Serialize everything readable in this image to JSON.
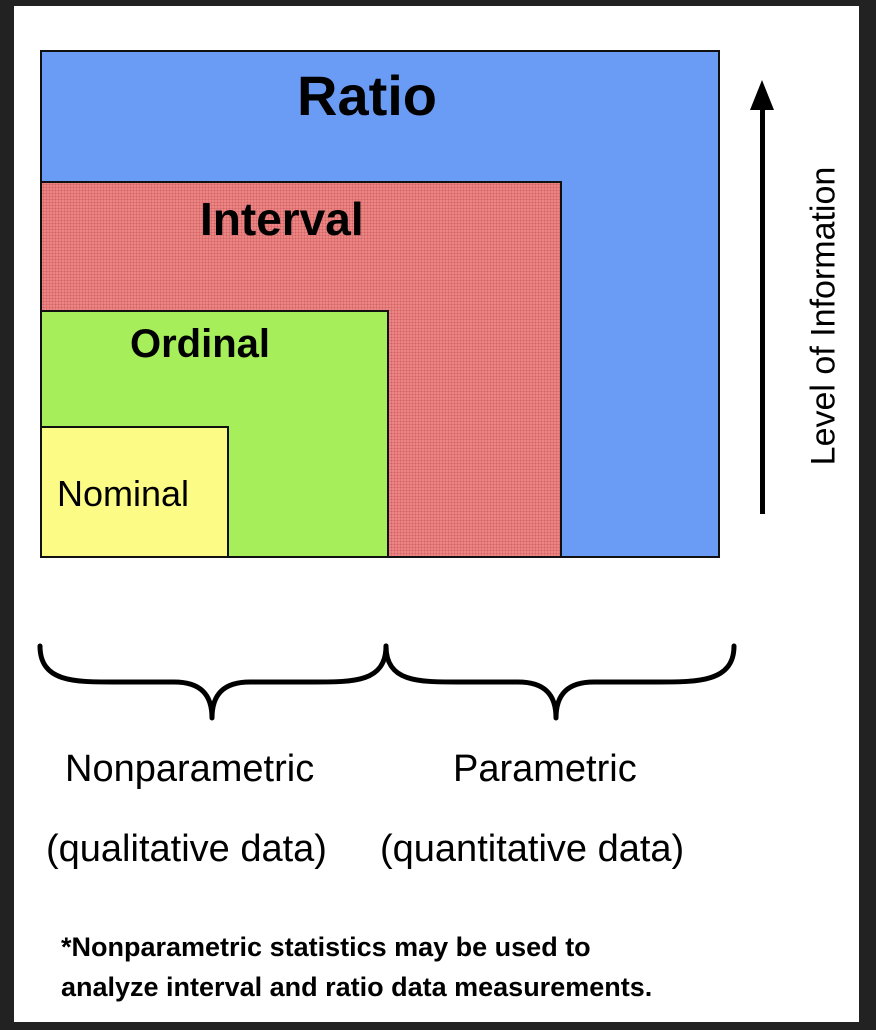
{
  "levels": [
    {
      "key": "ratio",
      "label": "Ratio"
    },
    {
      "key": "interval",
      "label": "Interval"
    },
    {
      "key": "ordinal",
      "label": "Ordinal"
    },
    {
      "key": "nominal",
      "label": "Nominal"
    }
  ],
  "arrow_label": "Level of Information",
  "groups": {
    "nonparametric": {
      "title": "Nonparametric",
      "subtitle": "(qualitative data)"
    },
    "parametric": {
      "title": "Parametric",
      "subtitle": "(quantitative data)"
    }
  },
  "footnote": {
    "line1": "*Nonparametric statistics may be used to",
    "line2": "analyze interval and ratio data measurements."
  },
  "colors": {
    "ratio": "#6b9cf5",
    "interval": "#ee8585",
    "ordinal": "#a6ee5a",
    "nominal": "#fbfb85",
    "ink": "#000000",
    "frame": "#222222"
  }
}
